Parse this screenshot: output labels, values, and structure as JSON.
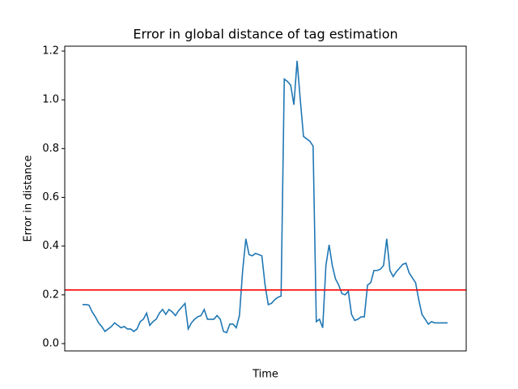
{
  "chart_data": {
    "type": "line",
    "title": "Error in global distance of tag estimation",
    "xlabel": "Time",
    "ylabel": "Error in distance",
    "series": [
      {
        "color": "#1f77b4",
        "values": [
          0.16,
          0.16,
          0.158,
          0.13,
          0.11,
          0.085,
          0.07,
          0.05,
          0.06,
          0.07,
          0.085,
          0.075,
          0.065,
          0.07,
          0.06,
          0.06,
          0.05,
          0.06,
          0.09,
          0.1,
          0.125,
          0.075,
          0.09,
          0.1,
          0.125,
          0.14,
          0.12,
          0.14,
          0.13,
          0.115,
          0.135,
          0.15,
          0.165,
          0.06,
          0.085,
          0.1,
          0.11,
          0.115,
          0.14,
          0.1,
          0.1,
          0.1,
          0.115,
          0.1,
          0.05,
          0.045,
          0.08,
          0.08,
          0.065,
          0.115,
          0.3,
          0.43,
          0.365,
          0.36,
          0.37,
          0.365,
          0.36,
          0.24,
          0.16,
          0.165,
          0.18,
          0.19,
          0.195,
          1.085,
          1.075,
          1.06,
          0.98,
          1.16,
          1.0,
          0.85,
          0.84,
          0.83,
          0.81,
          0.09,
          0.1,
          0.065,
          0.32,
          0.405,
          0.32,
          0.265,
          0.24,
          0.205,
          0.2,
          0.215,
          0.12,
          0.095,
          0.1,
          0.11,
          0.11,
          0.24,
          0.25,
          0.3,
          0.3,
          0.305,
          0.32,
          0.43,
          0.3,
          0.275,
          0.295,
          0.31,
          0.325,
          0.33,
          0.29,
          0.27,
          0.25,
          0.18,
          0.12,
          0.1,
          0.08,
          0.09,
          0.085,
          0.085,
          0.085,
          0.085,
          0.085
        ]
      }
    ],
    "hlines": [
      {
        "value": 0.22,
        "color": "red"
      }
    ],
    "ylim": [
      -0.03,
      1.22
    ],
    "yticks": [
      {
        "value": 0,
        "label": "0.0"
      },
      0.2,
      0.4,
      0.6,
      0.8,
      {
        "value": 1,
        "label": "1.0"
      },
      1.2
    ]
  }
}
